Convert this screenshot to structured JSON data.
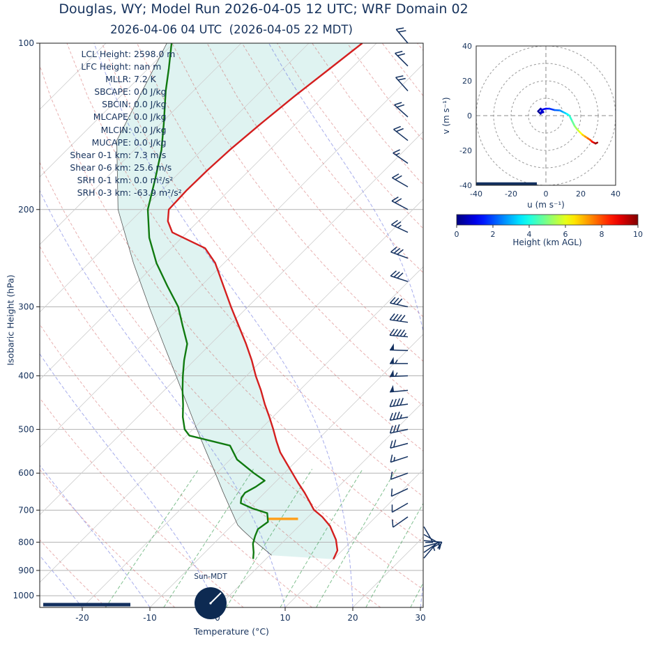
{
  "title": "Douglas, WY; Model Run 2026-04-05 12 UTC; WRF Domain 02",
  "subtitle": "2026-04-06 04 UTC  (2026-04-05 22 MDT)",
  "stats": {
    "rows": [
      {
        "label": "LCL Height:",
        "value": "2598.0 m"
      },
      {
        "label": "LFC Height:",
        "value": "nan m"
      },
      {
        "label": "MLLR:",
        "value": "7.2 K"
      },
      {
        "label": "SBCAPE:",
        "value": "0.0 J/kg"
      },
      {
        "label": "SBCIN:",
        "value": "0.0 J/kg"
      },
      {
        "label": "MLCAPE:",
        "value": "0.0 J/kg"
      },
      {
        "label": "MLCIN:",
        "value": "0.0 J/kg"
      },
      {
        "label": "MUCAPE:",
        "value": "0.0 J/kg"
      },
      {
        "label": "Shear 0-1 km:",
        "value": "7.3 m/s"
      },
      {
        "label": "Shear 0-6 km:",
        "value": "25.6 m/s"
      },
      {
        "label": "SRH 0-1 km:",
        "value": "0.0 m²/s²"
      },
      {
        "label": "SRH 0-3 km:",
        "value": "-63.9 m²/s²"
      }
    ]
  },
  "skewt_axes": {
    "ylabel": "Isobaric Height (hPa)",
    "xlabel": "Temperature (°C)",
    "yticks": [
      100,
      200,
      300,
      400,
      500,
      600,
      700,
      800,
      900,
      1000
    ],
    "xticks": [
      -20,
      -10,
      0,
      10,
      20,
      30
    ],
    "sun_label": "Sun-MDT"
  },
  "hodograph": {
    "xlabel": "u (m s⁻¹)",
    "ylabel": "v (m s⁻¹)",
    "xticks": [
      -40,
      -20,
      0,
      20,
      40
    ],
    "yticks": [
      -40,
      -20,
      0,
      20,
      40
    ],
    "ring_radii": [
      10,
      20,
      30,
      40
    ]
  },
  "colorbar": {
    "label": "Height (km AGL)",
    "ticks": [
      0,
      2,
      4,
      6,
      8,
      10
    ],
    "min": 0,
    "max": 10
  },
  "colors": {
    "navy": "#16325c",
    "temperature": "#d41f1f",
    "dewpoint": "#107a10",
    "parcel": "#555555",
    "cin_fill": "#d9f1ef",
    "lcl_marker": "#ff9f1a",
    "barb": "#13305f",
    "dry_adiabat": "rgba(205,80,80,0.45)",
    "moist_adiabat": "rgba(95,105,220,0.55)",
    "mixing_line": "rgba(45,150,70,0.60)",
    "isotherm": "#cfcfcf",
    "pressure_line": "#b3b3b3"
  },
  "chart_data": {
    "type": "skewt-log-p-sounding-with-hodograph",
    "pressure_range": [
      100,
      1050
    ],
    "surface_temp_axis_range_c": [
      -26.3,
      30.4
    ],
    "isotherm_step_c": 10,
    "dry_adiabats_theta_c": {
      "min": -30,
      "max": 160,
      "step": 10
    },
    "moist_adiabats_start_c": {
      "min": -30,
      "max": 50,
      "step": 10
    },
    "mixing_ratios_g_kg": [
      1,
      2,
      4,
      7,
      10,
      16,
      24
    ],
    "mixing_line_top_hpa": 590,
    "temperature_profile": [
      {
        "p": 859,
        "t": 10.0
      },
      {
        "p": 828,
        "t": 9.3
      },
      {
        "p": 792,
        "t": 7.5
      },
      {
        "p": 748,
        "t": 4.6
      },
      {
        "p": 720,
        "t": 2.1
      },
      {
        "p": 699,
        "t": -0.2
      },
      {
        "p": 675,
        "t": -2.1
      },
      {
        "p": 651,
        "t": -4.1
      },
      {
        "p": 625,
        "t": -6.5
      },
      {
        "p": 600,
        "t": -8.8
      },
      {
        "p": 575,
        "t": -11.2
      },
      {
        "p": 550,
        "t": -13.7
      },
      {
        "p": 525,
        "t": -15.9
      },
      {
        "p": 500,
        "t": -18.1
      },
      {
        "p": 475,
        "t": -20.5
      },
      {
        "p": 451,
        "t": -23.0
      },
      {
        "p": 425,
        "t": -25.7
      },
      {
        "p": 401,
        "t": -28.5
      },
      {
        "p": 375,
        "t": -31.5
      },
      {
        "p": 350,
        "t": -34.8
      },
      {
        "p": 325,
        "t": -38.5
      },
      {
        "p": 300,
        "t": -42.5
      },
      {
        "p": 275,
        "t": -46.7
      },
      {
        "p": 250,
        "t": -51.3
      },
      {
        "p": 235,
        "t": -55.0
      },
      {
        "p": 220,
        "t": -62.2
      },
      {
        "p": 210,
        "t": -64.5
      },
      {
        "p": 200,
        "t": -66.1
      },
      {
        "p": 185,
        "t": -66.3
      },
      {
        "p": 170,
        "t": -66.2
      },
      {
        "p": 156,
        "t": -65.9
      },
      {
        "p": 140,
        "t": -65.2
      },
      {
        "p": 125,
        "t": -64.3
      },
      {
        "p": 112,
        "t": -63.2
      },
      {
        "p": 100,
        "t": -62.1
      }
    ],
    "dewpoint_profile": [
      {
        "p": 858,
        "t": -1.9
      },
      {
        "p": 835,
        "t": -2.8
      },
      {
        "p": 805,
        "t": -4.2
      },
      {
        "p": 780,
        "t": -5.0
      },
      {
        "p": 758,
        "t": -5.6
      },
      {
        "p": 735,
        "t": -5.2
      },
      {
        "p": 709,
        "t": -6.6
      },
      {
        "p": 695,
        "t": -9.5
      },
      {
        "p": 680,
        "t": -12.0
      },
      {
        "p": 665,
        "t": -12.7
      },
      {
        "p": 651,
        "t": -12.9
      },
      {
        "p": 635,
        "t": -12.2
      },
      {
        "p": 619,
        "t": -11.8
      },
      {
        "p": 600,
        "t": -14.5
      },
      {
        "p": 567,
        "t": -19.0
      },
      {
        "p": 535,
        "t": -22.1
      },
      {
        "p": 513,
        "t": -29.6
      },
      {
        "p": 500,
        "t": -31.2
      },
      {
        "p": 475,
        "t": -33.3
      },
      {
        "p": 451,
        "t": -35.1
      },
      {
        "p": 425,
        "t": -37.3
      },
      {
        "p": 400,
        "t": -39.4
      },
      {
        "p": 375,
        "t": -41.5
      },
      {
        "p": 350,
        "t": -43.5
      },
      {
        "p": 325,
        "t": -46.8
      },
      {
        "p": 300,
        "t": -50.3
      },
      {
        "p": 275,
        "t": -55.0
      },
      {
        "p": 250,
        "t": -60.0
      },
      {
        "p": 225,
        "t": -64.8
      },
      {
        "p": 200,
        "t": -69.2
      },
      {
        "p": 175,
        "t": -72.8
      },
      {
        "p": 156,
        "t": -76.0
      },
      {
        "p": 140,
        "t": -79.5
      },
      {
        "p": 122,
        "t": -84.1
      },
      {
        "p": 111,
        "t": -87.0
      },
      {
        "p": 100,
        "t": -90.3
      }
    ],
    "parcel_profile": [
      {
        "p": 845,
        "t": 0.3
      },
      {
        "p": 800,
        "t": -4.0
      },
      {
        "p": 760,
        "t": -7.8
      },
      {
        "p": 745,
        "t": -9.2
      },
      {
        "p": 700,
        "t": -12.4
      },
      {
        "p": 650,
        "t": -16.2
      },
      {
        "p": 600,
        "t": -20.2
      },
      {
        "p": 550,
        "t": -24.6
      },
      {
        "p": 500,
        "t": -29.4
      },
      {
        "p": 450,
        "t": -34.6
      },
      {
        "p": 400,
        "t": -40.4
      },
      {
        "p": 350,
        "t": -47.0
      },
      {
        "p": 300,
        "t": -54.6
      },
      {
        "p": 250,
        "t": -63.4
      },
      {
        "p": 200,
        "t": -73.6
      },
      {
        "p": 150,
        "t": -84.0
      },
      {
        "p": 100,
        "t": -91.0
      }
    ],
    "lcl_marker": {
      "pressure": 726,
      "t_min": -5.8,
      "t_max": -1.2
    },
    "winds": [
      {
        "p": 100,
        "speed": 22,
        "dir": 320
      },
      {
        "p": 110,
        "speed": 20,
        "dir": 315
      },
      {
        "p": 122,
        "speed": 18,
        "dir": 318
      },
      {
        "p": 136,
        "speed": 20,
        "dir": 312
      },
      {
        "p": 150,
        "speed": 18,
        "dir": 308
      },
      {
        "p": 165,
        "speed": 15,
        "dir": 305
      },
      {
        "p": 182,
        "speed": 18,
        "dir": 300
      },
      {
        "p": 200,
        "speed": 22,
        "dir": 298
      },
      {
        "p": 220,
        "speed": 25,
        "dir": 295
      },
      {
        "p": 245,
        "speed": 28,
        "dir": 290
      },
      {
        "p": 270,
        "speed": 28,
        "dir": 288
      },
      {
        "p": 300,
        "speed": 32,
        "dir": 282
      },
      {
        "p": 320,
        "speed": 38,
        "dir": 278
      },
      {
        "p": 340,
        "speed": 45,
        "dir": 275
      },
      {
        "p": 360,
        "speed": 52,
        "dir": 272
      },
      {
        "p": 380,
        "speed": 55,
        "dir": 270
      },
      {
        "p": 400,
        "speed": 55,
        "dir": 268
      },
      {
        "p": 425,
        "speed": 50,
        "dir": 265
      },
      {
        "p": 450,
        "speed": 42,
        "dir": 262
      },
      {
        "p": 475,
        "speed": 35,
        "dir": 260
      },
      {
        "p": 500,
        "speed": 28,
        "dir": 258
      },
      {
        "p": 530,
        "speed": 22,
        "dir": 255
      },
      {
        "p": 560,
        "speed": 15,
        "dir": 252
      },
      {
        "p": 600,
        "speed": 12,
        "dir": 250
      },
      {
        "p": 640,
        "speed": 10,
        "dir": 245
      },
      {
        "p": 680,
        "speed": 10,
        "dir": 240
      },
      {
        "p": 720,
        "speed": 12,
        "dir": 235
      },
      {
        "p": 750,
        "speed": 10,
        "dir": 150
      },
      {
        "p": 775,
        "speed": 8,
        "dir": 120
      },
      {
        "p": 795,
        "speed": 10,
        "dir": 95
      },
      {
        "p": 815,
        "speed": 10,
        "dir": 75
      },
      {
        "p": 835,
        "speed": 8,
        "dir": 55
      },
      {
        "p": 855,
        "speed": 6,
        "dir": 40
      }
    ],
    "hodograph_trace": [
      {
        "u": -3,
        "v": 1,
        "h": 0
      },
      {
        "u": -4.5,
        "v": 2.5,
        "h": 0.2
      },
      {
        "u": -3,
        "v": 4,
        "h": 0.4
      },
      {
        "u": -1.5,
        "v": 2,
        "h": 0.6
      },
      {
        "u": -3,
        "v": 1.5,
        "h": 0.8
      },
      {
        "u": -2,
        "v": 3.5,
        "h": 1
      },
      {
        "u": 0,
        "v": 4,
        "h": 1.2
      },
      {
        "u": 2,
        "v": 4,
        "h": 1.5
      },
      {
        "u": 5,
        "v": 3.2,
        "h": 2
      },
      {
        "u": 8,
        "v": 3,
        "h": 2.5
      },
      {
        "u": 10,
        "v": 2,
        "h": 3
      },
      {
        "u": 12,
        "v": 1,
        "h": 3.5
      },
      {
        "u": 13.5,
        "v": 0,
        "h": 4
      },
      {
        "u": 15,
        "v": -3,
        "h": 4.5
      },
      {
        "u": 16.5,
        "v": -6,
        "h": 5
      },
      {
        "u": 18,
        "v": -8,
        "h": 5.5
      },
      {
        "u": 19.5,
        "v": -9.5,
        "h": 6
      },
      {
        "u": 21,
        "v": -11,
        "h": 6.5
      },
      {
        "u": 22.5,
        "v": -12,
        "h": 7
      },
      {
        "u": 24,
        "v": -13,
        "h": 7.5
      },
      {
        "u": 25.5,
        "v": -14,
        "h": 8
      },
      {
        "u": 26.5,
        "v": -15,
        "h": 8.5
      },
      {
        "u": 27.5,
        "v": -15.5,
        "h": 9
      },
      {
        "u": 28.5,
        "v": -16,
        "h": 9.5
      },
      {
        "u": 29.5,
        "v": -15.5,
        "h": 10
      }
    ]
  }
}
